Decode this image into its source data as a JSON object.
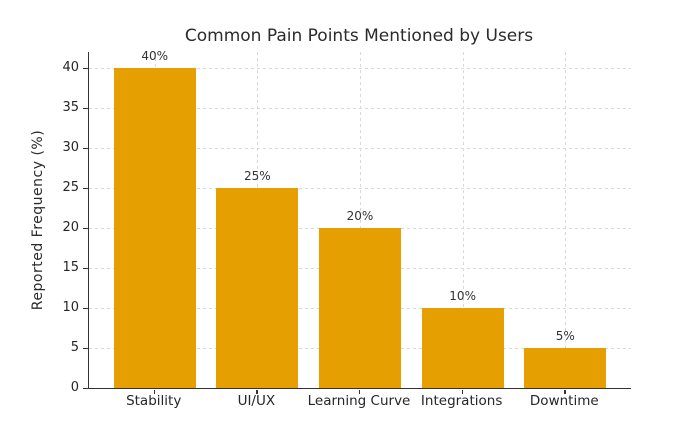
{
  "chart_data": {
    "type": "bar",
    "title": "Common Pain Points Mentioned by Users",
    "categories": [
      "Stability",
      "UI/UX",
      "Learning Curve",
      "Integrations",
      "Downtime"
    ],
    "values": [
      40,
      25,
      20,
      10,
      5
    ],
    "bar_labels": [
      "40%",
      "25%",
      "20%",
      "10%",
      "5%"
    ],
    "xlabel": "",
    "ylabel": "Reported Frequency (%)",
    "ylim": [
      0,
      42
    ],
    "yticks": [
      0,
      5,
      10,
      15,
      20,
      25,
      30,
      35,
      40
    ],
    "grid": true,
    "grid_style": "dotted",
    "legend": false,
    "bar_color": "#E69F00",
    "spine_color": "#333333",
    "grid_color": "#d9d9d9",
    "text_color": "#262626"
  }
}
